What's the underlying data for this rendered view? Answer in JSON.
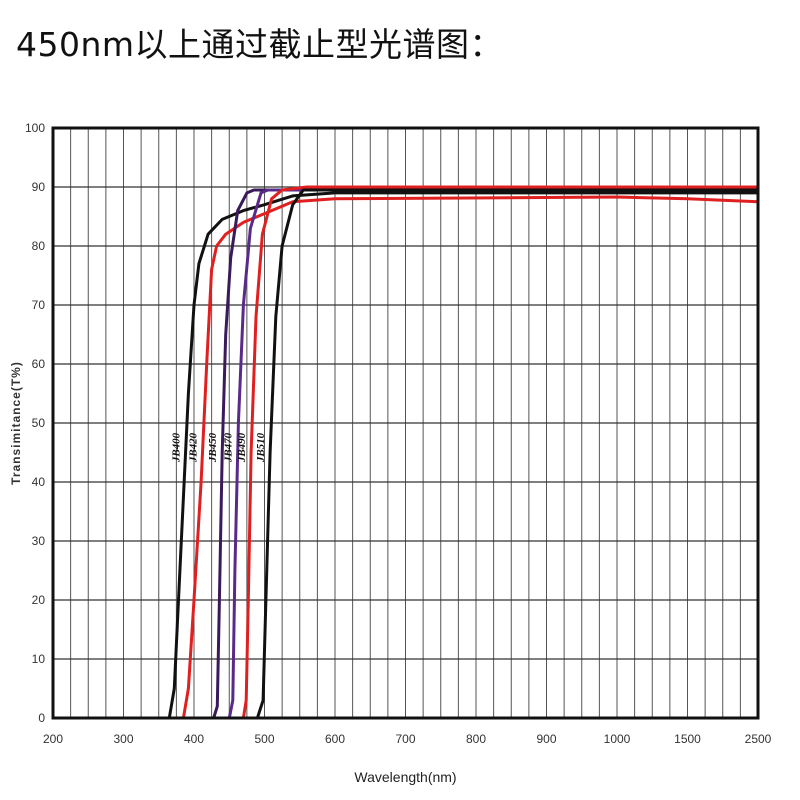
{
  "chart_data": {
    "type": "line",
    "title": "450nm以上通过截止型光谱图：",
    "xlabel": "Wavelength(nm)",
    "ylabel": "Transimitance(T%)",
    "x_ticks": [
      "200",
      "300",
      "400",
      "500",
      "600",
      "700",
      "800",
      "900",
      "1000",
      "1500",
      "2500"
    ],
    "y_ticks": [
      0,
      10,
      20,
      30,
      40,
      50,
      60,
      70,
      80,
      90,
      100
    ],
    "ylim": [
      0,
      100
    ],
    "grid": true,
    "series": [
      {
        "name": "JB400",
        "color": "#111111",
        "points": [
          [
            365,
            0
          ],
          [
            372,
            5
          ],
          [
            380,
            25
          ],
          [
            392,
            55
          ],
          [
            400,
            70
          ],
          [
            407,
            77
          ],
          [
            420,
            82
          ],
          [
            440,
            84.5
          ],
          [
            470,
            86
          ],
          [
            500,
            87
          ],
          [
            540,
            88.5
          ],
          [
            600,
            89
          ],
          [
            1000,
            89
          ],
          [
            1500,
            89
          ],
          [
            2500,
            89
          ]
        ]
      },
      {
        "name": "JB420",
        "color": "#e02020",
        "points": [
          [
            385,
            0
          ],
          [
            392,
            5
          ],
          [
            400,
            20
          ],
          [
            410,
            40
          ],
          [
            418,
            60
          ],
          [
            425,
            76
          ],
          [
            432,
            80
          ],
          [
            445,
            82
          ],
          [
            470,
            84
          ],
          [
            500,
            85.5
          ],
          [
            540,
            87.5
          ],
          [
            600,
            88
          ],
          [
            1000,
            88.3
          ],
          [
            1500,
            88
          ],
          [
            2500,
            87.5
          ]
        ]
      },
      {
        "name": "JB450",
        "color": "#3a1a5a",
        "points": [
          [
            428,
            0
          ],
          [
            433,
            2
          ],
          [
            436,
            20
          ],
          [
            440,
            45
          ],
          [
            445,
            65
          ],
          [
            452,
            78
          ],
          [
            462,
            86
          ],
          [
            475,
            89
          ],
          [
            485,
            89.5
          ],
          [
            550,
            89.5
          ],
          [
            1000,
            89.5
          ],
          [
            2500,
            89.5
          ]
        ]
      },
      {
        "name": "JB470",
        "color": "#5a2a8a",
        "points": [
          [
            450,
            0
          ],
          [
            455,
            3
          ],
          [
            458,
            25
          ],
          [
            463,
            50
          ],
          [
            470,
            70
          ],
          [
            480,
            83
          ],
          [
            495,
            89
          ],
          [
            505,
            89.5
          ],
          [
            560,
            89.5
          ],
          [
            1000,
            89.5
          ],
          [
            2500,
            89.5
          ]
        ]
      },
      {
        "name": "JB490",
        "color": "#e02020",
        "points": [
          [
            470,
            0
          ],
          [
            474,
            3
          ],
          [
            477,
            20
          ],
          [
            481,
            45
          ],
          [
            488,
            68
          ],
          [
            497,
            82
          ],
          [
            510,
            88
          ],
          [
            525,
            89.5
          ],
          [
            560,
            90
          ],
          [
            1000,
            90
          ],
          [
            2500,
            90
          ]
        ]
      },
      {
        "name": "JB510",
        "color": "#111111",
        "points": [
          [
            490,
            0
          ],
          [
            498,
            3
          ],
          [
            502,
            20
          ],
          [
            508,
            45
          ],
          [
            516,
            68
          ],
          [
            525,
            80
          ],
          [
            540,
            87
          ],
          [
            555,
            89.5
          ],
          [
            600,
            89.5
          ],
          [
            1000,
            89.5
          ],
          [
            2500,
            89.5
          ]
        ]
      }
    ]
  }
}
